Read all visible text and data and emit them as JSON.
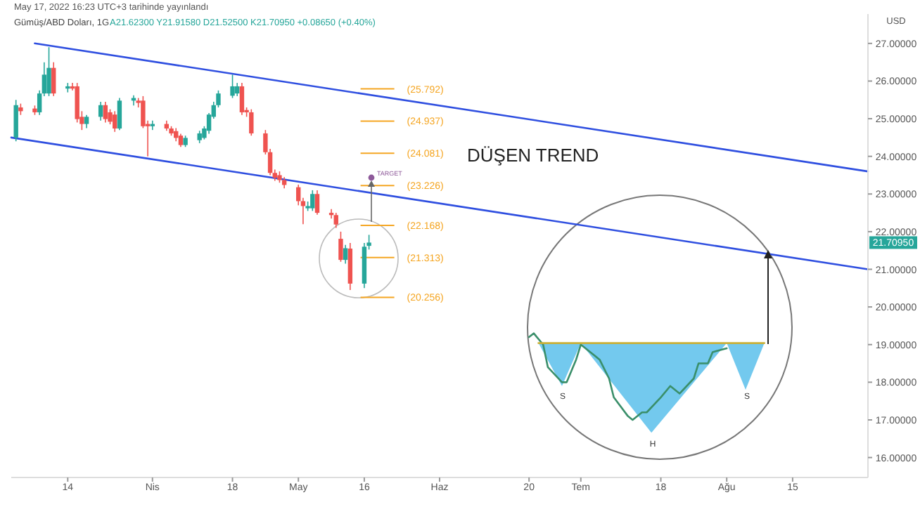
{
  "chart_data": {
    "type": "candlestick",
    "title": "Gümüş/ABD Doları, 1G",
    "subtitle": "A21.62300 Y21.91580 D21.52500 K21.70950 +0.08650 (+0.40%)",
    "ylabel": "USD",
    "x": [
      "2022-03-03",
      "2022-03-04",
      "2022-03-07",
      "2022-03-08",
      "2022-03-09",
      "2022-03-10",
      "2022-03-11",
      "2022-03-14",
      "2022-03-15",
      "2022-03-16",
      "2022-03-17",
      "2022-03-18",
      "2022-03-21",
      "2022-03-22",
      "2022-03-23",
      "2022-03-24",
      "2022-03-25",
      "2022-03-28",
      "2022-03-29",
      "2022-03-30",
      "2022-03-31",
      "2022-04-01",
      "2022-04-04",
      "2022-04-05",
      "2022-04-06",
      "2022-04-07",
      "2022-04-08",
      "2022-04-11",
      "2022-04-12",
      "2022-04-13",
      "2022-04-14",
      "2022-04-15",
      "2022-04-18",
      "2022-04-19",
      "2022-04-20",
      "2022-04-21",
      "2022-04-22",
      "2022-04-25",
      "2022-04-26",
      "2022-04-27",
      "2022-04-28",
      "2022-04-29",
      "2022-05-02",
      "2022-05-03",
      "2022-05-04",
      "2022-05-05",
      "2022-05-06",
      "2022-05-09",
      "2022-05-10",
      "2022-05-11",
      "2022-05-12",
      "2022-05-13",
      "2022-05-16",
      "2022-05-17"
    ],
    "ohlc": [
      [
        24.5,
        25.5,
        24.4,
        25.36
      ],
      [
        25.3,
        25.4,
        25.1,
        25.2
      ],
      [
        25.27,
        25.35,
        25.1,
        25.17
      ],
      [
        25.17,
        25.75,
        25.1,
        25.67
      ],
      [
        25.67,
        26.5,
        25.6,
        26.17
      ],
      [
        25.67,
        26.9,
        25.6,
        26.35
      ],
      [
        26.35,
        26.5,
        25.6,
        25.67
      ],
      [
        25.8,
        25.95,
        25.7,
        25.86
      ],
      [
        25.86,
        25.95,
        25.75,
        25.8
      ],
      [
        25.86,
        25.95,
        24.9,
        24.99
      ],
      [
        25.05,
        25.2,
        24.7,
        24.86
      ],
      [
        24.86,
        25.1,
        24.75,
        25.05
      ],
      [
        25.05,
        25.45,
        24.95,
        25.36
      ],
      [
        25.36,
        25.45,
        24.9,
        24.99
      ],
      [
        25.17,
        25.25,
        24.85,
        24.92
      ],
      [
        25.11,
        25.2,
        24.65,
        24.74
      ],
      [
        24.74,
        25.55,
        24.7,
        25.48
      ],
      [
        25.48,
        25.62,
        25.35,
        25.55
      ],
      [
        25.48,
        25.55,
        25.3,
        25.42
      ],
      [
        25.48,
        25.6,
        24.75,
        24.8
      ],
      [
        24.86,
        24.95,
        24,
        24.8
      ],
      [
        24.8,
        24.95,
        24.7,
        24.86
      ],
      [
        24.86,
        24.95,
        24.68,
        24.74
      ],
      [
        24.74,
        24.8,
        24.55,
        24.61
      ],
      [
        24.67,
        24.75,
        24.4,
        24.49
      ],
      [
        24.55,
        24.6,
        24.25,
        24.3
      ],
      [
        24.3,
        24.55,
        24.25,
        24.49
      ],
      [
        24.43,
        24.68,
        24.35,
        24.61
      ],
      [
        24.49,
        24.8,
        24.45,
        24.74
      ],
      [
        24.68,
        25.15,
        24.6,
        25.11
      ],
      [
        25.05,
        25.45,
        25,
        25.36
      ],
      [
        25.36,
        25.75,
        25.3,
        25.67
      ],
      [
        25.61,
        26.17,
        25.55,
        25.86
      ],
      [
        25.67,
        25.95,
        25.6,
        25.86
      ],
      [
        25.86,
        25.95,
        25.1,
        25.17
      ],
      [
        25.23,
        25.3,
        25.05,
        25.17
      ],
      [
        25.17,
        25.25,
        24.55,
        24.61
      ],
      [
        24.61,
        24.7,
        24.05,
        24.11
      ],
      [
        24.11,
        24.2,
        23.5,
        23.56
      ],
      [
        23.56,
        23.65,
        23.35,
        23.43
      ],
      [
        23.5,
        23.6,
        23.3,
        23.37
      ],
      [
        23.37,
        23.45,
        23.15,
        23.24
      ],
      [
        23.18,
        23.25,
        22.7,
        22.81
      ],
      [
        22.81,
        22.9,
        22.2,
        22.68
      ],
      [
        22.62,
        22.8,
        22.55,
        22.68
      ],
      [
        22.62,
        23.1,
        22.55,
        23
      ],
      [
        23,
        23.1,
        22.45,
        22.5
      ],
      [
        22.5,
        22.6,
        22.35,
        22.44
      ],
      [
        22.44,
        22.5,
        22.1,
        22.19
      ],
      [
        21.81,
        22,
        21.2,
        21.25
      ],
      [
        21.25,
        21.65,
        21.15,
        21.56
      ],
      [
        21.55,
        21.7,
        20.45,
        20.62
      ],
      [
        20.62,
        21.7,
        20.5,
        21.6
      ],
      [
        21.623,
        21.9158,
        21.525,
        21.7095
      ]
    ],
    "series": [
      {
        "type": "line",
        "color": "#2f4fe0",
        "x": [
          "2022-03-07",
          "2022-08-31"
        ],
        "values": [
          27.0,
          23.6
        ]
      },
      {
        "type": "line",
        "color": "#2f4fe0",
        "x": [
          "2022-03-02",
          "2022-08-31"
        ],
        "values": [
          24.5,
          21.0
        ]
      },
      {
        "type": "area",
        "color": "#5bc0eb",
        "x": [
          "2022-06-22",
          "2022-06-27",
          "2022-07-01",
          "2022-07-16",
          "2022-08-01",
          "2022-08-05",
          "2022-08-09"
        ],
        "values": [
          19.04,
          17.9,
          19.04,
          16.66,
          19.04,
          17.8,
          19.04
        ]
      },
      {
        "type": "line",
        "color": "#3a8f6a",
        "x": [
          "2022-06-20",
          "2022-06-21",
          "2022-06-23",
          "2022-06-24",
          "2022-06-27",
          "2022-06-28",
          "2022-06-30",
          "2022-07-01",
          "2022-07-04",
          "2022-07-05",
          "2022-07-07",
          "2022-07-08",
          "2022-07-11",
          "2022-07-12",
          "2022-07-14",
          "2022-07-15",
          "2022-07-18",
          "2022-07-20",
          "2022-07-22",
          "2022-07-25",
          "2022-07-26",
          "2022-07-28",
          "2022-07-29",
          "2022-08-01"
        ],
        "values": [
          19.2,
          19.3,
          19.0,
          18.4,
          18.0,
          18.0,
          18.6,
          19.0,
          18.7,
          18.6,
          18.1,
          17.6,
          17.1,
          17.0,
          17.2,
          17.2,
          17.6,
          17.9,
          17.7,
          18.1,
          18.5,
          18.5,
          18.8,
          18.9
        ]
      },
      {
        "type": "line",
        "color": "#c9b037",
        "x": [
          "2022-06-22",
          "2022-08-09"
        ],
        "values": [
          19.04,
          19.04
        ]
      }
    ],
    "ref_lines": [
      {
        "axis": "y",
        "value": 25.792,
        "label": "(25.792)",
        "color": "#f5a623"
      },
      {
        "axis": "y",
        "value": 24.937,
        "label": "(24.937)",
        "color": "#f5a623"
      },
      {
        "axis": "y",
        "value": 24.081,
        "label": "(24.081)",
        "color": "#f5a623"
      },
      {
        "axis": "y",
        "value": 23.226,
        "label": "(23.226)",
        "color": "#f5a623"
      },
      {
        "axis": "y",
        "value": 22.168,
        "label": "(22.168)",
        "color": "#f5a623"
      },
      {
        "axis": "y",
        "value": 21.313,
        "label": "(21.313)",
        "color": "#f5a623"
      },
      {
        "axis": "y",
        "value": 20.256,
        "label": "(20.256)",
        "color": "#f5a623"
      }
    ],
    "annotations": [
      "May 17, 2022 16:23 UTC+3 tarihinde yayınlandı",
      "DÜŞEN TREND",
      "TARGET",
      "S",
      "H",
      "S",
      "21.70950"
    ],
    "xlim": [
      "2022-03-02",
      "2022-08-31"
    ],
    "xticks": [
      {
        "value": "2022-03-14",
        "label": "14"
      },
      {
        "value": "2022-04-01",
        "label": "Nis"
      },
      {
        "value": "2022-04-18",
        "label": "18"
      },
      {
        "value": "2022-05-02",
        "label": "May"
      },
      {
        "value": "2022-05-16",
        "label": "16"
      },
      {
        "value": "2022-06-01",
        "label": "Haz"
      },
      {
        "value": "2022-06-20",
        "label": "20"
      },
      {
        "value": "2022-07-01",
        "label": "Tem"
      },
      {
        "value": "2022-07-18",
        "label": "18"
      },
      {
        "value": "2022-08-01",
        "label": "Ağu"
      },
      {
        "value": "2022-08-15",
        "label": "15"
      }
    ],
    "ylim": [
      15.47,
      27.78
    ],
    "yticks": [
      {
        "value": 16,
        "label": "16.00000"
      },
      {
        "value": 17,
        "label": "17.00000"
      },
      {
        "value": 18,
        "label": "18.00000"
      },
      {
        "value": 19,
        "label": "19.00000"
      },
      {
        "value": 20,
        "label": "20.00000"
      },
      {
        "value": 21,
        "label": "21.00000"
      },
      {
        "value": 22,
        "label": "22.00000"
      },
      {
        "value": 23,
        "label": "23.00000"
      },
      {
        "value": 24,
        "label": "24.00000"
      },
      {
        "value": 25,
        "label": "25.00000"
      },
      {
        "value": 26,
        "label": "26.00000"
      },
      {
        "value": 27,
        "label": "27.00000"
      }
    ]
  }
}
